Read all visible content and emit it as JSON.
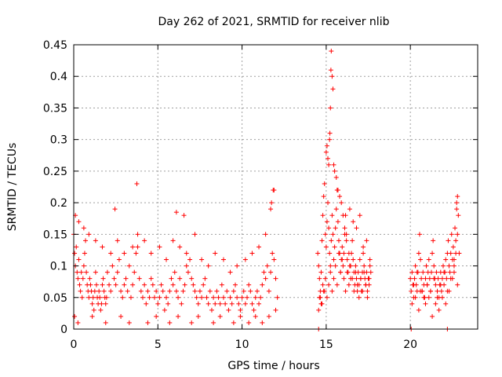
{
  "chart_data": {
    "type": "scatter",
    "title": "Day 262 of 2021, SRMTID for receiver nlib",
    "xlabel": "GPS time / hours",
    "ylabel": "SRMTID / TECUs",
    "xlim": [
      0,
      24
    ],
    "ylim": [
      0,
      0.45
    ],
    "xticks": [
      0,
      5,
      10,
      15,
      20
    ],
    "yticks": [
      0,
      0.05,
      0.1,
      0.15,
      0.2,
      0.25,
      0.3,
      0.35,
      0.4,
      0.45
    ],
    "xtick_labels": [
      "0",
      "5",
      "10",
      "15",
      "20"
    ],
    "ytick_labels": [
      "0",
      "0.05",
      "0.1",
      "0.15",
      "0.2",
      "0.25",
      "0.3",
      "0.35",
      "0.4",
      "0.45"
    ],
    "grid": true,
    "marker": "plus",
    "color": "#ff0000",
    "series": [
      {
        "x": [
          0.0,
          0.05,
          0.1,
          0.15,
          0.2,
          0.25,
          0.3,
          0.35,
          0.4,
          0.45,
          0.5,
          0.55,
          0.6,
          0.65,
          0.7,
          0.75,
          0.8,
          0.85,
          0.9,
          0.95,
          1.0,
          1.05,
          1.1,
          1.15,
          1.2,
          1.25,
          1.3,
          1.35,
          1.4,
          1.45,
          1.5,
          1.55,
          1.6,
          1.65,
          1.7,
          1.75,
          1.8,
          1.85,
          1.9,
          1.95,
          2.0,
          2.1,
          2.2,
          2.3,
          2.4,
          2.5,
          2.6,
          2.7,
          2.8,
          2.9,
          3.0,
          3.1,
          3.2,
          3.3,
          3.4,
          3.5,
          3.6,
          3.7,
          3.8,
          3.9,
          4.0,
          4.1,
          4.2,
          4.3,
          4.4,
          4.5,
          4.6,
          4.7,
          4.8,
          4.9,
          5.0,
          5.1,
          5.2,
          5.3,
          5.4,
          5.5,
          5.6,
          5.7,
          5.8,
          5.9,
          6.0,
          6.1,
          6.2,
          6.3,
          6.4,
          6.5,
          6.6,
          6.7,
          6.8,
          6.9,
          7.0,
          7.1,
          7.2,
          7.3,
          7.4,
          7.5,
          7.6,
          7.7,
          7.8,
          7.9,
          8.0,
          8.1,
          8.2,
          8.3,
          8.4,
          8.5,
          8.6,
          8.7,
          8.8,
          8.9,
          9.0,
          9.1,
          9.2,
          9.3,
          9.4,
          9.5,
          9.6,
          9.7,
          9.8,
          9.9,
          10.0,
          10.1,
          10.2,
          10.3,
          10.4,
          10.5,
          10.6,
          10.7,
          10.8,
          10.9,
          11.0,
          11.1,
          11.2,
          11.3,
          11.4,
          11.5,
          11.6,
          11.7,
          11.8,
          11.9,
          12.0,
          12.1,
          0.1,
          0.3,
          0.6,
          0.9,
          1.3,
          1.7,
          2.2,
          2.6,
          3.0,
          3.5,
          3.8,
          4.2,
          4.6,
          5.1,
          5.5,
          5.9,
          6.3,
          6.7,
          7.2,
          7.6,
          8.0,
          8.4,
          8.9,
          9.3,
          9.7,
          10.2,
          10.6,
          11.0,
          11.4,
          11.7,
          11.9,
          3.75,
          2.45,
          6.55,
          6.1,
          11.85,
          11.75,
          0.05,
          0.25,
          1.1,
          1.9,
          2.8,
          3.3,
          4.4,
          4.9,
          5.7,
          6.2,
          7.0,
          7.4,
          8.3,
          8.7,
          9.5,
          9.9,
          10.4,
          10.8,
          11.2,
          11.6,
          12.0
        ],
        "y": [
          0.15,
          0.12,
          0.1,
          0.13,
          0.09,
          0.08,
          0.11,
          0.07,
          0.06,
          0.09,
          0.05,
          0.08,
          0.1,
          0.12,
          0.14,
          0.09,
          0.07,
          0.06,
          0.05,
          0.08,
          0.07,
          0.06,
          0.04,
          0.05,
          0.03,
          0.06,
          0.09,
          0.07,
          0.05,
          0.04,
          0.06,
          0.05,
          0.03,
          0.04,
          0.07,
          0.08,
          0.06,
          0.05,
          0.04,
          0.05,
          0.09,
          0.07,
          0.06,
          0.1,
          0.08,
          0.07,
          0.09,
          0.11,
          0.06,
          0.05,
          0.07,
          0.08,
          0.06,
          0.1,
          0.05,
          0.07,
          0.09,
          0.12,
          0.13,
          0.08,
          0.06,
          0.05,
          0.07,
          0.04,
          0.06,
          0.05,
          0.08,
          0.07,
          0.05,
          0.06,
          0.04,
          0.05,
          0.07,
          0.06,
          0.03,
          0.05,
          0.04,
          0.06,
          0.08,
          0.07,
          0.09,
          0.06,
          0.05,
          0.08,
          0.04,
          0.06,
          0.07,
          0.1,
          0.09,
          0.11,
          0.08,
          0.07,
          0.06,
          0.05,
          0.04,
          0.06,
          0.05,
          0.07,
          0.08,
          0.05,
          0.04,
          0.06,
          0.03,
          0.05,
          0.04,
          0.06,
          0.05,
          0.04,
          0.07,
          0.05,
          0.04,
          0.06,
          0.03,
          0.05,
          0.04,
          0.06,
          0.07,
          0.05,
          0.04,
          0.03,
          0.05,
          0.06,
          0.04,
          0.05,
          0.07,
          0.06,
          0.04,
          0.03,
          0.05,
          0.06,
          0.04,
          0.05,
          0.07,
          0.09,
          0.08,
          0.1,
          0.06,
          0.09,
          0.12,
          0.11,
          0.08,
          0.05,
          0.18,
          0.17,
          0.16,
          0.15,
          0.14,
          0.13,
          0.12,
          0.14,
          0.12,
          0.13,
          0.15,
          0.14,
          0.12,
          0.13,
          0.11,
          0.14,
          0.13,
          0.12,
          0.15,
          0.11,
          0.1,
          0.12,
          0.11,
          0.09,
          0.1,
          0.11,
          0.12,
          0.13,
          0.15,
          0.19,
          0.22,
          0.23,
          0.19,
          0.18,
          0.185,
          0.22,
          0.2,
          0.02,
          0.01,
          0.02,
          0.01,
          0.02,
          0.01,
          0.01,
          0.02,
          0.01,
          0.02,
          0.01,
          0.02,
          0.01,
          0.02,
          0.01,
          0.02,
          0.01,
          0.02,
          0.01,
          0.02,
          0.03
        ],
        "name": ""
      },
      {
        "x": [
          14.5,
          14.55,
          14.6,
          14.65,
          14.7,
          14.75,
          14.8,
          14.85,
          14.9,
          14.95,
          15.0,
          15.05,
          15.1,
          15.15,
          15.2,
          15.25,
          15.3,
          15.35,
          15.4,
          15.45,
          15.5,
          15.55,
          15.6,
          15.65,
          15.7,
          15.75,
          15.8,
          15.85,
          15.9,
          15.95,
          16.0,
          16.05,
          16.1,
          16.15,
          16.2,
          16.25,
          16.3,
          16.35,
          16.4,
          16.45,
          16.5,
          16.55,
          16.6,
          16.65,
          16.7,
          16.75,
          16.8,
          16.85,
          16.9,
          16.95,
          17.0,
          17.05,
          17.1,
          17.15,
          17.2,
          17.25,
          17.3,
          17.35,
          17.4,
          17.45,
          17.5,
          17.55,
          17.6,
          17.65,
          14.6,
          14.7,
          14.8,
          14.9,
          15.0,
          15.05,
          15.1,
          15.15,
          15.2,
          15.22,
          15.25,
          15.28,
          15.3,
          15.35,
          15.4,
          15.45,
          15.5,
          15.6,
          15.7,
          15.8,
          15.9,
          16.0,
          16.1,
          16.2,
          16.4,
          16.6,
          16.8,
          17.0,
          17.2,
          17.4,
          17.6,
          14.55,
          14.65,
          14.75,
          14.85,
          14.95,
          15.05,
          15.15,
          15.25,
          15.35,
          15.45,
          15.55,
          15.65,
          15.75,
          15.85,
          15.95,
          16.05,
          16.15,
          16.25,
          16.35,
          16.45,
          16.55,
          16.65,
          16.75,
          16.85,
          16.95,
          17.05,
          17.15,
          17.25,
          17.35,
          17.45,
          17.55
        ],
        "y": [
          0.12,
          0.1,
          0.08,
          0.06,
          0.09,
          0.14,
          0.18,
          0.21,
          0.23,
          0.15,
          0.13,
          0.17,
          0.2,
          0.16,
          0.12,
          0.1,
          0.14,
          0.18,
          0.15,
          0.11,
          0.13,
          0.16,
          0.19,
          0.22,
          0.17,
          0.14,
          0.12,
          0.09,
          0.11,
          0.13,
          0.1,
          0.12,
          0.15,
          0.18,
          0.14,
          0.11,
          0.09,
          0.07,
          0.1,
          0.08,
          0.12,
          0.14,
          0.11,
          0.09,
          0.07,
          0.1,
          0.08,
          0.06,
          0.09,
          0.07,
          0.11,
          0.08,
          0.06,
          0.09,
          0.12,
          0.1,
          0.08,
          0.07,
          0.09,
          0.06,
          0.08,
          0.07,
          0.1,
          0.09,
          0.05,
          0.04,
          0.07,
          0.06,
          0.28,
          0.29,
          0.27,
          0.26,
          0.3,
          0.31,
          0.35,
          0.41,
          0.44,
          0.4,
          0.38,
          0.26,
          0.25,
          0.24,
          0.22,
          0.21,
          0.2,
          0.18,
          0.16,
          0.15,
          0.19,
          0.17,
          0.16,
          0.18,
          0.13,
          0.14,
          0.11,
          0.03,
          0.05,
          0.04,
          0.06,
          0.08,
          0.05,
          0.07,
          0.09,
          0.06,
          0.08,
          0.1,
          0.07,
          0.12,
          0.09,
          0.11,
          0.08,
          0.06,
          0.09,
          0.12,
          0.1,
          0.08,
          0.06,
          0.09,
          0.07,
          0.05,
          0.08,
          0.06,
          0.09,
          0.07,
          0.05,
          0.08
        ],
        "name": ""
      },
      {
        "x": [
          20.0,
          20.05,
          20.1,
          20.15,
          20.2,
          20.25,
          20.3,
          20.35,
          20.4,
          20.45,
          20.5,
          20.55,
          20.6,
          20.65,
          20.7,
          20.75,
          20.8,
          20.85,
          20.9,
          20.95,
          21.0,
          21.05,
          21.1,
          21.15,
          21.2,
          21.25,
          21.3,
          21.35,
          21.4,
          21.45,
          21.5,
          21.55,
          21.6,
          21.65,
          21.7,
          21.75,
          21.8,
          21.85,
          21.9,
          21.95,
          22.0,
          22.05,
          22.1,
          22.15,
          22.2,
          22.25,
          22.3,
          22.35,
          22.4,
          22.45,
          22.5,
          22.55,
          22.6,
          22.65,
          22.7,
          22.75,
          22.8,
          22.85,
          22.9,
          20.1,
          20.3,
          20.5,
          20.7,
          20.9,
          21.1,
          21.3,
          21.5,
          21.7,
          21.9,
          22.1,
          22.3,
          22.5,
          22.6,
          22.7,
          22.75,
          22.8,
          20.2,
          20.4,
          20.6,
          20.8,
          21.0,
          21.2,
          21.4,
          21.6,
          21.8,
          22.0,
          22.2,
          22.4,
          22.6,
          22.8
        ],
        "y": [
          0.08,
          0.06,
          0.09,
          0.07,
          0.05,
          0.08,
          0.1,
          0.07,
          0.06,
          0.09,
          0.12,
          0.15,
          0.11,
          0.08,
          0.06,
          0.09,
          0.07,
          0.05,
          0.08,
          0.1,
          0.07,
          0.09,
          0.11,
          0.08,
          0.06,
          0.09,
          0.12,
          0.14,
          0.1,
          0.08,
          0.07,
          0.09,
          0.06,
          0.08,
          0.05,
          0.07,
          0.09,
          0.06,
          0.08,
          0.1,
          0.07,
          0.09,
          0.11,
          0.08,
          0.12,
          0.14,
          0.1,
          0.09,
          0.12,
          0.15,
          0.11,
          0.13,
          0.09,
          0.16,
          0.14,
          0.19,
          0.21,
          0.18,
          0.12,
          0.04,
          0.05,
          0.03,
          0.06,
          0.04,
          0.05,
          0.02,
          0.04,
          0.03,
          0.05,
          0.04,
          0.06,
          0.08,
          0.1,
          0.12,
          0.2,
          0.15,
          0.07,
          0.09,
          0.06,
          0.05,
          0.07,
          0.06,
          0.08,
          0.05,
          0.07,
          0.09,
          0.06,
          0.08,
          0.11,
          0.07
        ],
        "name": ""
      },
      {
        "x": [
          14.55,
          20.05,
          22.2
        ],
        "y": [
          0,
          0,
          0
        ],
        "name": ""
      }
    ]
  }
}
